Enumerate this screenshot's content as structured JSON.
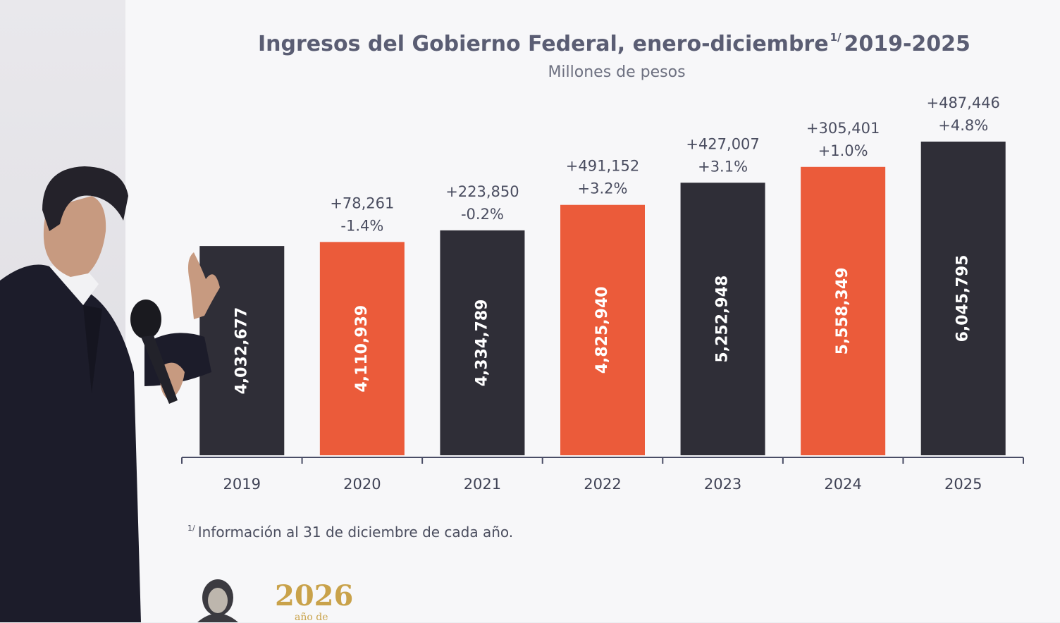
{
  "chart_data": {
    "type": "bar",
    "title": "Ingresos del Gobierno Federal, enero-diciembre",
    "title_note": "1/",
    "title_years": "2019-2025",
    "subtitle": "Millones de pesos",
    "categories": [
      "2019",
      "2020",
      "2021",
      "2022",
      "2023",
      "2024",
      "2025"
    ],
    "values": [
      4032677,
      4110939,
      4334789,
      4825940,
      5252948,
      5558349,
      6045795
    ],
    "value_labels": [
      "4,032,677",
      "4,110,939",
      "4,334,789",
      "4,825,940",
      "5,252,948",
      "5,558,349",
      "6,045,795"
    ],
    "change_labels": [
      "",
      "+78,261",
      "+223,850",
      "+491,152",
      "+427,007",
      "+305,401",
      "+487,446"
    ],
    "pct_labels": [
      "",
      "-1.4%",
      "-0.2%",
      "+3.2%",
      "+3.1%",
      "+1.0%",
      "+4.8%"
    ],
    "colors": [
      "#2f2e37",
      "#eb5b3a",
      "#2f2e37",
      "#eb5b3a",
      "#2f2e37",
      "#eb5b3a",
      "#2f2e37"
    ],
    "grid": false,
    "legend": "none"
  },
  "footnote": {
    "mark": "1/",
    "text": "Información al 31 de diciembre de cada año."
  },
  "logo": {
    "year": "2026",
    "subtitle": "año de"
  }
}
